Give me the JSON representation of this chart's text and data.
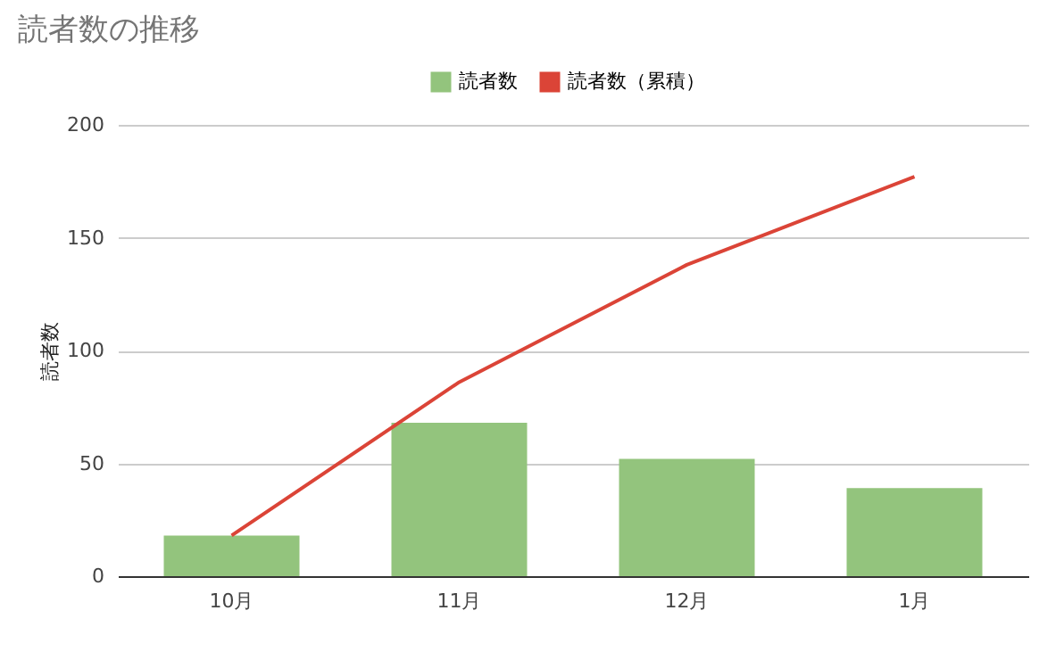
{
  "chart_data": {
    "type": "bar",
    "title": "読者数の推移",
    "ylabel": "読者数",
    "categories": [
      "10月",
      "11月",
      "12月",
      "1月"
    ],
    "series": [
      {
        "name": "読者数",
        "color": "#93c47d",
        "values": [
          18,
          68,
          52,
          39
        ]
      },
      {
        "name": "読者数（累積）",
        "type": "line",
        "color": "#db4437",
        "values": [
          18,
          86,
          138,
          177
        ]
      }
    ],
    "ylim": [
      0,
      200
    ],
    "yticks": [
      0,
      50,
      100,
      150,
      200
    ],
    "grid": "y",
    "legend": "top"
  }
}
